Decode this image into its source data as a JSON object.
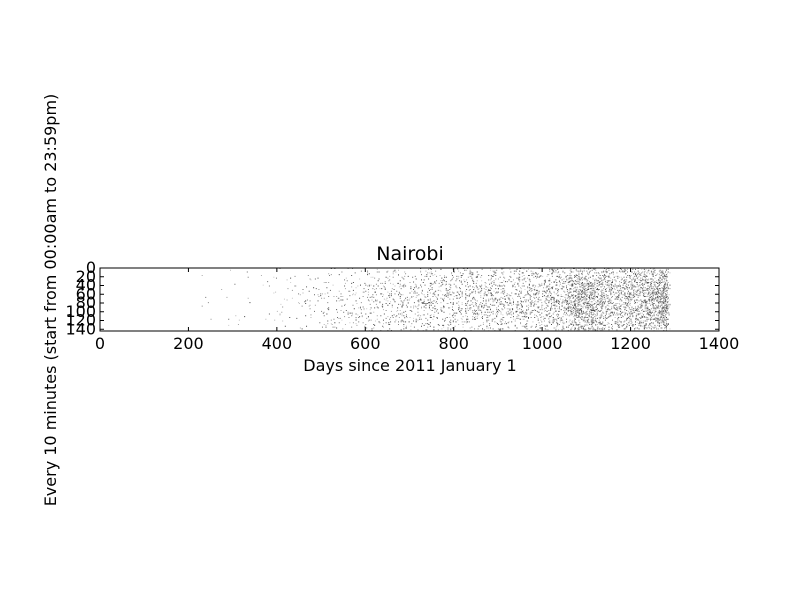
{
  "chart_data": {
    "type": "heatmap",
    "title": "Nairobi",
    "xlabel": "Days since 2011 January 1",
    "ylabel": "Every 10 minutes (start from 00:00am to 23:59pm)",
    "xlim": [
      0,
      1400
    ],
    "ylim": [
      144,
      0
    ],
    "y_inverted": true,
    "xticks": [
      0,
      200,
      400,
      600,
      800,
      1000,
      1200,
      1400
    ],
    "yticks": [
      0,
      20,
      40,
      60,
      80,
      100,
      120,
      140
    ],
    "grid": false,
    "colormap": "white-to-black (greys)",
    "data_extent": {
      "x": [
        0,
        1290
      ],
      "y": [
        0,
        144
      ]
    },
    "density_by_day": [
      {
        "day": 0,
        "density": 0.0
      },
      {
        "day": 200,
        "density": 0.0
      },
      {
        "day": 400,
        "density": 0.01
      },
      {
        "day": 480,
        "density": 0.03
      },
      {
        "day": 560,
        "density": 0.06
      },
      {
        "day": 620,
        "density": 0.09
      },
      {
        "day": 700,
        "density": 0.11
      },
      {
        "day": 800,
        "density": 0.14
      },
      {
        "day": 900,
        "density": 0.16
      },
      {
        "day": 1000,
        "density": 0.18
      },
      {
        "day": 1050,
        "density": 0.22
      },
      {
        "day": 1080,
        "density": 0.45
      },
      {
        "day": 1110,
        "density": 0.4
      },
      {
        "day": 1150,
        "density": 0.25
      },
      {
        "day": 1200,
        "density": 0.28
      },
      {
        "day": 1250,
        "density": 0.4
      },
      {
        "day": 1280,
        "density": 0.55
      },
      {
        "day": 1290,
        "density": 0.0
      }
    ],
    "density_by_interval": [
      {
        "interval": 0,
        "density": 0.45
      },
      {
        "interval": 30,
        "density": 0.8
      },
      {
        "interval": 60,
        "density": 1.0
      },
      {
        "interval": 90,
        "density": 1.0
      },
      {
        "interval": 120,
        "density": 0.75
      },
      {
        "interval": 144,
        "density": 0.35
      }
    ]
  }
}
